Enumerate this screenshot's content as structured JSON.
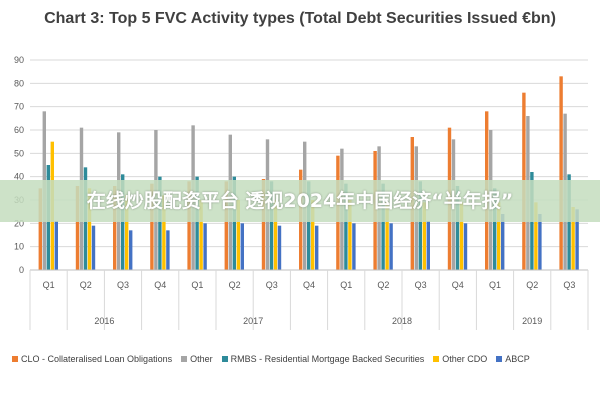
{
  "chart_data": {
    "type": "bar",
    "title": "Chart 3: Top 5 FVC Activity types (Total Debt Securities Issued €bn)",
    "ylim": [
      0,
      90
    ],
    "yticks": [
      0,
      10,
      20,
      30,
      40,
      50,
      60,
      70,
      80,
      90
    ],
    "categories": [
      "Q1",
      "Q2",
      "Q3",
      "Q4",
      "Q1",
      "Q2",
      "Q3",
      "Q4",
      "Q1",
      "Q2",
      "Q3",
      "Q4",
      "Q1",
      "Q2",
      "Q3"
    ],
    "groups": [
      {
        "label": "2016",
        "count": 4
      },
      {
        "label": "2017",
        "count": 4
      },
      {
        "label": "2018",
        "count": 4
      },
      {
        "label": "2019",
        "count": 3
      }
    ],
    "grid": true,
    "legend_position": "bottom",
    "series": [
      {
        "name": "CLO - Collateralised Loan Obligations",
        "color": "#ed7d31",
        "values": [
          35,
          36,
          36,
          37,
          38,
          38,
          39,
          43,
          49,
          51,
          57,
          61,
          68,
          76,
          83
        ]
      },
      {
        "name": "Other",
        "color": "#a5a5a5",
        "values": [
          68,
          61,
          59,
          60,
          62,
          58,
          56,
          55,
          52,
          53,
          53,
          56,
          60,
          66,
          67
        ]
      },
      {
        "name": "RMBS - Residential Mortgage Backed Securities",
        "color": "#2e8b9a",
        "values": [
          45,
          44,
          41,
          40,
          40,
          40,
          38,
          38,
          37,
          37,
          38,
          36,
          35,
          42,
          41
        ]
      },
      {
        "name": "Other CDO",
        "color": "#ffc000",
        "values": [
          55,
          35,
          32,
          32,
          30,
          30,
          30,
          30,
          30,
          29,
          29,
          29,
          29,
          29,
          27
        ]
      },
      {
        "name": "ABCP",
        "color": "#4472c4",
        "values": [
          21,
          19,
          17,
          17,
          20,
          20,
          19,
          19,
          20,
          20,
          21,
          20,
          24,
          24,
          26
        ]
      }
    ]
  },
  "overlay": {
    "text": "在线炒股配资平台 透视2024年中国经济“半年报”"
  }
}
